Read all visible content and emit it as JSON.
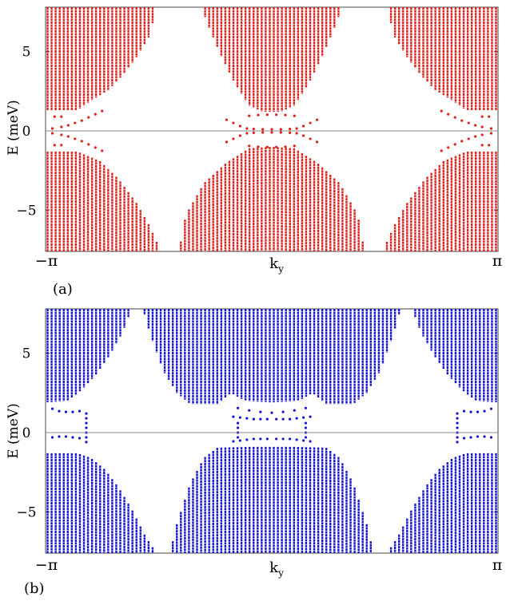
{
  "figure": {
    "panel_labels": [
      "(a)",
      "(b)"
    ]
  },
  "chart_data": [
    {
      "type": "scatter",
      "panel": "(a)",
      "color": "#e0201c",
      "xlabel": "k",
      "xlabel_sub": "y",
      "ylabel": "E (meV)",
      "xlim": [
        "-π",
        "π"
      ],
      "ylim": [
        -7.6,
        7.8
      ],
      "xticks": [
        "−π",
        "π"
      ],
      "yticks": [
        {
          "value": 5,
          "label": "5"
        },
        {
          "value": 0,
          "label": "0"
        },
        {
          "value": -5,
          "label": "−5"
        }
      ],
      "zero_line": true,
      "series": [
        {
          "kind": "bulk_band_columns",
          "columns": 112,
          "upper_band_edge": [
            [
              0.0,
              1.3
            ],
            [
              0.07,
              1.3
            ],
            [
              0.1,
              1.9
            ],
            [
              0.14,
              2.6
            ],
            [
              0.17,
              3.5
            ],
            [
              0.2,
              4.6
            ],
            [
              0.23,
              6.0
            ],
            [
              0.245,
              7.8
            ],
            [
              0.345,
              7.8
            ],
            [
              0.36,
              6.6
            ],
            [
              0.39,
              4.6
            ],
            [
              0.42,
              2.9
            ],
            [
              0.45,
              1.6
            ],
            [
              0.48,
              1.2
            ],
            [
              0.52,
              1.2
            ],
            [
              0.55,
              1.6
            ],
            [
              0.58,
              2.9
            ],
            [
              0.61,
              4.6
            ],
            [
              0.64,
              6.6
            ],
            [
              0.655,
              7.8
            ],
            [
              0.755,
              7.8
            ],
            [
              0.77,
              6.0
            ],
            [
              0.8,
              4.6
            ],
            [
              0.83,
              3.5
            ],
            [
              0.86,
              2.6
            ],
            [
              0.9,
              1.9
            ],
            [
              0.93,
              1.3
            ],
            [
              1.0,
              1.3
            ]
          ],
          "lower_band_edge": [
            [
              0.0,
              -1.3
            ],
            [
              0.07,
              -1.3
            ],
            [
              0.12,
              -1.9
            ],
            [
              0.16,
              -3.0
            ],
            [
              0.2,
              -4.5
            ],
            [
              0.23,
              -6.0
            ],
            [
              0.255,
              -7.6
            ],
            [
              0.295,
              -7.6
            ],
            [
              0.31,
              -5.3
            ],
            [
              0.35,
              -3.3
            ],
            [
              0.4,
              -2.0
            ],
            [
              0.45,
              -1.1
            ],
            [
              0.5,
              -1.0
            ],
            [
              0.55,
              -1.1
            ],
            [
              0.6,
              -2.0
            ],
            [
              0.65,
              -3.3
            ],
            [
              0.69,
              -5.3
            ],
            [
              0.705,
              -7.6
            ],
            [
              0.745,
              -7.6
            ],
            [
              0.77,
              -6.0
            ],
            [
              0.8,
              -4.5
            ],
            [
              0.84,
              -3.0
            ],
            [
              0.88,
              -1.9
            ],
            [
              0.93,
              -1.3
            ],
            [
              1.0,
              -1.3
            ]
          ]
        },
        {
          "kind": "in_gap_states",
          "points": [
            [
              0.035,
              0.25
            ],
            [
              0.05,
              0.35
            ],
            [
              0.065,
              0.5
            ],
            [
              0.08,
              0.65
            ],
            [
              0.095,
              0.85
            ],
            [
              0.11,
              1.05
            ],
            [
              0.125,
              1.25
            ],
            [
              0.035,
              -0.25
            ],
            [
              0.05,
              -0.35
            ],
            [
              0.065,
              -0.5
            ],
            [
              0.08,
              -0.65
            ],
            [
              0.095,
              -0.85
            ],
            [
              0.11,
              -1.05
            ],
            [
              0.125,
              -1.25
            ],
            [
              0.015,
              0.15
            ],
            [
              0.015,
              -0.15
            ],
            [
              0.02,
              0.9
            ],
            [
              0.02,
              -0.9
            ],
            [
              0.035,
              0.9
            ],
            [
              0.035,
              -0.9
            ],
            [
              0.875,
              1.25
            ],
            [
              0.89,
              1.05
            ],
            [
              0.905,
              0.85
            ],
            [
              0.92,
              0.65
            ],
            [
              0.935,
              0.5
            ],
            [
              0.95,
              0.35
            ],
            [
              0.965,
              0.25
            ],
            [
              0.875,
              -1.25
            ],
            [
              0.89,
              -1.05
            ],
            [
              0.905,
              -0.85
            ],
            [
              0.92,
              -0.65
            ],
            [
              0.935,
              -0.5
            ],
            [
              0.95,
              -0.35
            ],
            [
              0.965,
              -0.25
            ],
            [
              0.985,
              0.15
            ],
            [
              0.985,
              -0.15
            ],
            [
              0.98,
              0.9
            ],
            [
              0.98,
              -0.9
            ],
            [
              0.965,
              0.9
            ],
            [
              0.965,
              -0.9
            ],
            [
              0.4,
              0.7
            ],
            [
              0.415,
              0.5
            ],
            [
              0.43,
              0.3
            ],
            [
              0.445,
              0.15
            ],
            [
              0.4,
              -0.7
            ],
            [
              0.415,
              -0.5
            ],
            [
              0.43,
              -0.3
            ],
            [
              0.445,
              -0.15
            ],
            [
              0.555,
              0.15
            ],
            [
              0.57,
              0.3
            ],
            [
              0.585,
              0.5
            ],
            [
              0.6,
              0.7
            ],
            [
              0.555,
              -0.15
            ],
            [
              0.57,
              -0.3
            ],
            [
              0.585,
              -0.5
            ],
            [
              0.6,
              -0.7
            ],
            [
              0.45,
              0.95
            ],
            [
              0.47,
              1.0
            ],
            [
              0.49,
              1.02
            ],
            [
              0.51,
              1.02
            ],
            [
              0.53,
              1.0
            ],
            [
              0.55,
              0.95
            ],
            [
              0.45,
              -0.95
            ],
            [
              0.47,
              -1.0
            ],
            [
              0.49,
              -1.02
            ],
            [
              0.51,
              -1.02
            ],
            [
              0.53,
              -1.0
            ],
            [
              0.55,
              -0.95
            ],
            [
              0.46,
              0.12
            ],
            [
              0.48,
              0.1
            ],
            [
              0.5,
              0.1
            ],
            [
              0.52,
              0.1
            ],
            [
              0.54,
              0.12
            ],
            [
              0.46,
              -0.12
            ],
            [
              0.48,
              -0.1
            ],
            [
              0.5,
              -0.1
            ],
            [
              0.52,
              -0.1
            ],
            [
              0.54,
              -0.12
            ]
          ]
        }
      ]
    },
    {
      "type": "scatter",
      "panel": "(b)",
      "color": "#1414d6",
      "xlabel": "k",
      "xlabel_sub": "y",
      "ylabel": "E (meV)",
      "xlim": [
        "-π",
        "π"
      ],
      "ylim": [
        -7.6,
        7.8
      ],
      "xticks": [
        "−π",
        "π"
      ],
      "yticks": [
        {
          "value": 5,
          "label": "5"
        },
        {
          "value": 0,
          "label": "0"
        },
        {
          "value": -5,
          "label": "−5"
        }
      ],
      "zero_line": true,
      "series": [
        {
          "kind": "bulk_band_columns",
          "columns": 112,
          "upper_band_edge": [
            [
              0.0,
              1.9
            ],
            [
              0.05,
              2.0
            ],
            [
              0.08,
              2.7
            ],
            [
              0.11,
              3.6
            ],
            [
              0.14,
              4.8
            ],
            [
              0.17,
              6.3
            ],
            [
              0.19,
              7.8
            ],
            [
              0.215,
              7.8
            ],
            [
              0.23,
              6.3
            ],
            [
              0.26,
              3.9
            ],
            [
              0.29,
              2.5
            ],
            [
              0.32,
              1.8
            ],
            [
              0.38,
              1.8
            ],
            [
              0.41,
              2.5
            ],
            [
              0.44,
              2.0
            ],
            [
              0.5,
              1.9
            ],
            [
              0.56,
              2.0
            ],
            [
              0.59,
              2.5
            ],
            [
              0.62,
              1.8
            ],
            [
              0.68,
              1.8
            ],
            [
              0.71,
              2.5
            ],
            [
              0.74,
              3.9
            ],
            [
              0.77,
              6.3
            ],
            [
              0.785,
              7.8
            ],
            [
              0.81,
              7.8
            ],
            [
              0.83,
              6.3
            ],
            [
              0.86,
              4.8
            ],
            [
              0.89,
              3.6
            ],
            [
              0.92,
              2.7
            ],
            [
              0.95,
              2.0
            ],
            [
              1.0,
              1.9
            ]
          ],
          "lower_band_edge": [
            [
              0.0,
              -1.3
            ],
            [
              0.07,
              -1.3
            ],
            [
              0.1,
              -1.6
            ],
            [
              0.13,
              -2.3
            ],
            [
              0.16,
              -3.4
            ],
            [
              0.19,
              -4.8
            ],
            [
              0.22,
              -6.5
            ],
            [
              0.245,
              -7.6
            ],
            [
              0.275,
              -7.6
            ],
            [
              0.29,
              -5.8
            ],
            [
              0.32,
              -3.2
            ],
            [
              0.35,
              -1.6
            ],
            [
              0.38,
              -0.95
            ],
            [
              0.45,
              -0.9
            ],
            [
              0.55,
              -0.9
            ],
            [
              0.62,
              -0.95
            ],
            [
              0.65,
              -1.6
            ],
            [
              0.68,
              -3.2
            ],
            [
              0.71,
              -5.8
            ],
            [
              0.725,
              -7.6
            ],
            [
              0.755,
              -7.6
            ],
            [
              0.78,
              -6.5
            ],
            [
              0.81,
              -4.8
            ],
            [
              0.84,
              -3.4
            ],
            [
              0.87,
              -2.3
            ],
            [
              0.9,
              -1.6
            ],
            [
              0.93,
              -1.3
            ],
            [
              1.0,
              -1.3
            ]
          ]
        },
        {
          "kind": "in_gap_states",
          "points": [
            [
              0.015,
              1.5
            ],
            [
              0.03,
              1.35
            ],
            [
              0.045,
              1.3
            ],
            [
              0.06,
              1.3
            ],
            [
              0.075,
              1.35
            ],
            [
              0.015,
              -0.3
            ],
            [
              0.03,
              -0.25
            ],
            [
              0.045,
              -0.25
            ],
            [
              0.06,
              -0.3
            ],
            [
              0.075,
              -0.35
            ],
            [
              0.09,
              1.2
            ],
            [
              0.09,
              0.9
            ],
            [
              0.09,
              0.6
            ],
            [
              0.09,
              0.3
            ],
            [
              0.09,
              0.0
            ],
            [
              0.09,
              -0.3
            ],
            [
              0.09,
              -0.6
            ],
            [
              0.925,
              1.35
            ],
            [
              0.94,
              1.3
            ],
            [
              0.955,
              1.3
            ],
            [
              0.97,
              1.35
            ],
            [
              0.985,
              1.5
            ],
            [
              0.925,
              -0.35
            ],
            [
              0.94,
              -0.3
            ],
            [
              0.955,
              -0.25
            ],
            [
              0.97,
              -0.25
            ],
            [
              0.985,
              -0.3
            ],
            [
              0.91,
              1.2
            ],
            [
              0.91,
              0.9
            ],
            [
              0.91,
              0.6
            ],
            [
              0.91,
              0.3
            ],
            [
              0.91,
              0.0
            ],
            [
              0.91,
              -0.3
            ],
            [
              0.91,
              -0.6
            ],
            [
              0.415,
              1.0
            ],
            [
              0.43,
              0.95
            ],
            [
              0.445,
              0.9
            ],
            [
              0.46,
              0.85
            ],
            [
              0.475,
              0.85
            ],
            [
              0.49,
              0.85
            ],
            [
              0.51,
              0.85
            ],
            [
              0.525,
              0.85
            ],
            [
              0.54,
              0.85
            ],
            [
              0.555,
              0.9
            ],
            [
              0.57,
              0.95
            ],
            [
              0.585,
              1.0
            ],
            [
              0.415,
              -0.55
            ],
            [
              0.43,
              -0.5
            ],
            [
              0.445,
              -0.45
            ],
            [
              0.46,
              -0.4
            ],
            [
              0.475,
              -0.4
            ],
            [
              0.49,
              -0.4
            ],
            [
              0.51,
              -0.4
            ],
            [
              0.525,
              -0.4
            ],
            [
              0.54,
              -0.4
            ],
            [
              0.555,
              -0.45
            ],
            [
              0.57,
              -0.5
            ],
            [
              0.585,
              -0.55
            ],
            [
              0.425,
              1.55
            ],
            [
              0.45,
              1.4
            ],
            [
              0.475,
              1.3
            ],
            [
              0.5,
              1.25
            ],
            [
              0.525,
              1.3
            ],
            [
              0.55,
              1.4
            ],
            [
              0.575,
              1.55
            ],
            [
              0.425,
              0.6
            ],
            [
              0.425,
              0.3
            ],
            [
              0.425,
              0.0
            ],
            [
              0.425,
              -0.3
            ],
            [
              0.575,
              0.6
            ],
            [
              0.575,
              0.3
            ],
            [
              0.575,
              0.0
            ],
            [
              0.575,
              -0.3
            ]
          ]
        }
      ]
    }
  ]
}
